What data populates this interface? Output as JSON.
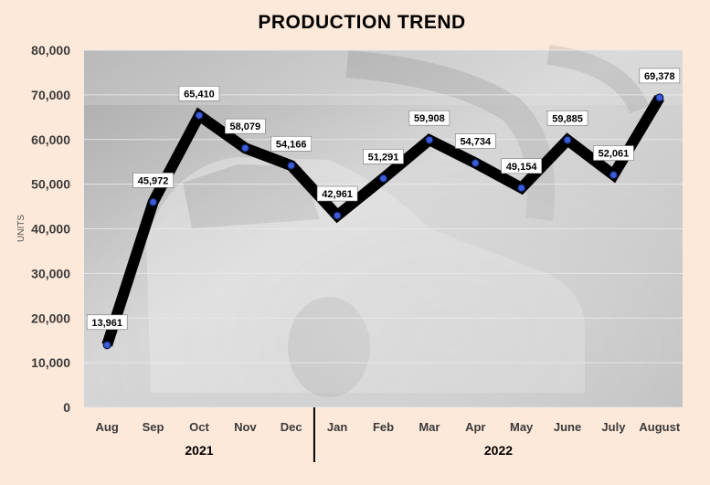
{
  "chart_data": {
    "type": "line",
    "title": "PRODUCTION TREND",
    "ylabel": "UNITS",
    "xlabel": "",
    "categories": [
      "Aug",
      "Sep",
      "Oct",
      "Nov",
      "Dec",
      "Jan",
      "Feb",
      "Mar",
      "Apr",
      "May",
      "June",
      "July",
      "August"
    ],
    "values": [
      13961,
      45972,
      65410,
      58079,
      54166,
      42961,
      51291,
      59908,
      54734,
      49154,
      59885,
      52061,
      69378
    ],
    "value_labels": [
      "13,961",
      "45,972",
      "65,410",
      "58,079",
      "54,166",
      "42,961",
      "51,291",
      "59,908",
      "54,734",
      "49,154",
      "59,885",
      "52,061",
      "69,378"
    ],
    "ylim": [
      0,
      80000
    ],
    "yticks": [
      "0",
      "10,000",
      "20,000",
      "30,000",
      "40,000",
      "50,000",
      "60,000",
      "70,000",
      "80,000"
    ],
    "groups": [
      {
        "label": "2021",
        "first": 0,
        "last": 4
      },
      {
        "label": "2022",
        "first": 5,
        "last": 12
      }
    ],
    "grid": true,
    "legend": "none",
    "colors": {
      "background": "#fde9d9",
      "line": "#000000",
      "marker": "#3b5bdb",
      "plot_background": "#c9c9c9"
    }
  }
}
